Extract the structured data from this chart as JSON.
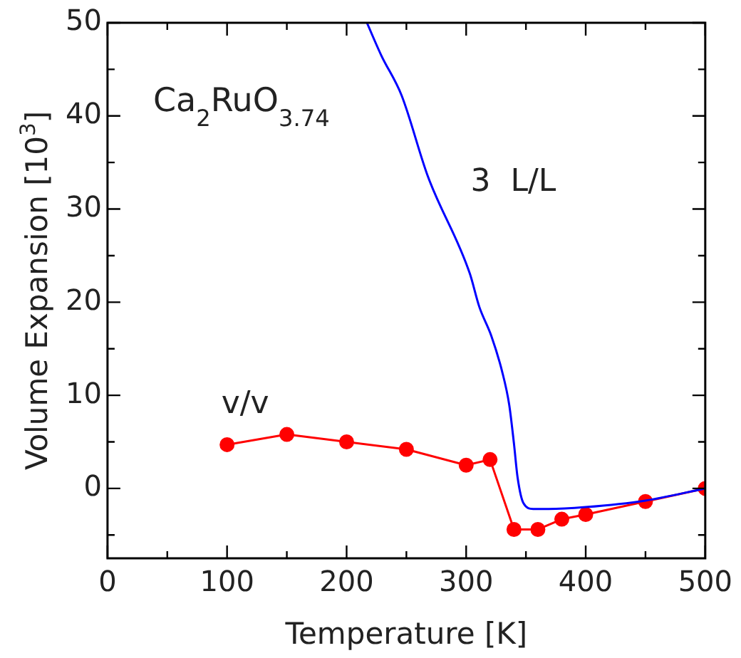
{
  "chart_data": {
    "type": "line",
    "xlabel": "Temperature [K]",
    "ylabel": "Volume Expansion [10$^{3}$]",
    "annotations": [
      "Ca$_{2}$RuO$_{3.74}$"
    ],
    "series": [
      {
        "name": "3  L/L",
        "color": "#0000ff",
        "marker": "none",
        "x": [
          217,
          229,
          246,
          268,
          303,
          311,
          321,
          330,
          336,
          340,
          343,
          348,
          356,
          369,
          400,
          450,
          500
        ],
        "values": [
          50,
          46.5,
          42.2,
          33.5,
          23.1,
          19.5,
          16.4,
          12.6,
          9.0,
          4.8,
          1.2,
          -1.6,
          -2.2,
          -2.2,
          -2.0,
          -1.3,
          0
        ]
      },
      {
        "name": "v/v",
        "color": "#ff0000",
        "marker": "circle",
        "x": [
          100,
          150,
          200,
          250,
          300,
          320,
          340,
          360,
          380,
          400,
          450,
          500
        ],
        "values": [
          4.7,
          5.8,
          5.0,
          4.2,
          2.5,
          3.1,
          -4.4,
          -4.4,
          -3.3,
          -2.8,
          -1.4,
          0
        ]
      }
    ],
    "xlim": [
      0,
      500
    ],
    "ylim": [
      -7.5,
      50
    ],
    "xticks": [
      0,
      {
        "value": 50,
        "label": null
      },
      100,
      {
        "value": 150,
        "label": null
      },
      200,
      {
        "value": 250,
        "label": null
      },
      300,
      {
        "value": 350,
        "label": null
      },
      400,
      {
        "value": 450,
        "label": null
      },
      500
    ],
    "yticks": [
      {
        "value": -5,
        "label": null
      },
      0,
      {
        "value": 5,
        "label": null
      },
      10,
      {
        "value": 15,
        "label": null
      },
      20,
      {
        "value": 25,
        "label": null
      },
      30,
      {
        "value": 35,
        "label": null
      },
      40,
      {
        "value": 45,
        "label": null
      },
      50
    ],
    "grid": false,
    "legend": false
  }
}
